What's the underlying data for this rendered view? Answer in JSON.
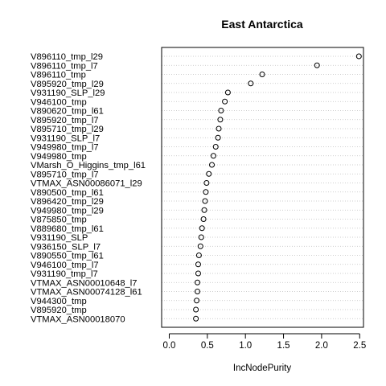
{
  "chart_data": {
    "type": "scatter",
    "title": "East Antarctica",
    "xlabel": "IncNodePurity",
    "ylabel": "",
    "xlim": [
      -0.1,
      2.55
    ],
    "xticks": [
      "0.0",
      "0.5",
      "1.0",
      "1.5",
      "2.0",
      "2.5"
    ],
    "grid": true,
    "categories": [
      "V896110_tmp_l29",
      "V896110_tmp_l7",
      "V896110_tmp",
      "V895920_tmp_l29",
      "V931190_SLP_l29",
      "V946100_tmp",
      "V890620_tmp_l61",
      "V895920_tmp_l7",
      "V895710_tmp_l29",
      "V931190_SLP_l7",
      "V949980_tmp_l7",
      "V949980_tmp",
      "VMarsh_O_Higgins_tmp_l61",
      "V895710_tmp_l7",
      "VTMAX_ASN00086071_l29",
      "V890500_tmp_l61",
      "V896420_tmp_l29",
      "V949980_tmp_l29",
      "V875850_tmp",
      "V889680_tmp_l61",
      "V931190_SLP",
      "V936150_SLP_l7",
      "V890550_tmp_l61",
      "V946100_tmp_l7",
      "V931190_tmp_l7",
      "VTMAX_ASN00010648_l7",
      "VTMAX_ASN00074128_l61",
      "V944300_tmp",
      "V895920_tmp",
      "VTMAX_ASN00018070"
    ],
    "values": [
      2.49,
      1.94,
      1.22,
      1.07,
      0.77,
      0.73,
      0.68,
      0.67,
      0.65,
      0.64,
      0.61,
      0.58,
      0.56,
      0.52,
      0.49,
      0.48,
      0.47,
      0.46,
      0.45,
      0.43,
      0.42,
      0.41,
      0.39,
      0.38,
      0.38,
      0.37,
      0.37,
      0.36,
      0.35,
      0.35
    ]
  }
}
